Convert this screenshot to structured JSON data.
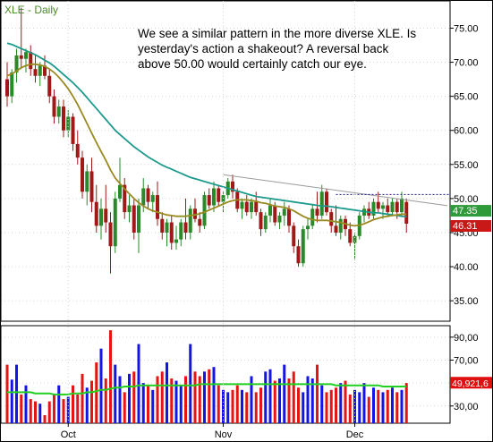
{
  "symbol_label": "XLE - Daily",
  "annotation": "We see a similar pattern in the more diverse XLE.  Is yesterday's action a shakeout?  A reversal back above 50.00 would certainly catch our eye.",
  "colors": {
    "up": "#2a8a2a",
    "down": "#a01818",
    "sma_long": "#1e9a8c",
    "sma_short": "#9a8a20",
    "vol_up": "#1414e6",
    "vol_down": "#e61414",
    "vol_ma": "#22d022",
    "trendline": "#9a9a9a",
    "resistance": "#1a1a8a",
    "label_green": "#4a8a2a",
    "price_tag_green": "#2e9a3a",
    "price_tag_red": "#c81818",
    "vol_tag": "#e01010"
  },
  "chart_data": [
    {
      "type": "candlestick",
      "title": "XLE - Daily",
      "xlabel": "",
      "ylabel": "",
      "ylim": [
        32,
        79
      ],
      "yticks": [
        35,
        40,
        45,
        50,
        55,
        60,
        65,
        70,
        75
      ],
      "ytick_labels": [
        "35.00",
        "40.00",
        "45.00",
        "50.00",
        "55.00",
        "60.00",
        "65.00",
        "70.00",
        "75.00"
      ],
      "month_labels": [
        {
          "label": "Oct",
          "bar": 13
        },
        {
          "label": "Nov",
          "bar": 46
        },
        {
          "label": "Dec",
          "bar": 74
        }
      ],
      "candles": [
        [
          67.5,
          70.0,
          63.5,
          65.0
        ],
        [
          65.0,
          69.0,
          64.0,
          68.5
        ],
        [
          68.5,
          72.0,
          67.0,
          71.0
        ],
        [
          71.0,
          78.0,
          69.0,
          70.5
        ],
        [
          70.5,
          72.0,
          68.5,
          71.5
        ],
        [
          71.5,
          72.5,
          68.0,
          69.0
        ],
        [
          69.0,
          71.0,
          67.0,
          68.0
        ],
        [
          68.0,
          70.0,
          66.5,
          69.5
        ],
        [
          69.5,
          71.0,
          67.5,
          68.0
        ],
        [
          68.0,
          69.0,
          64.0,
          65.0
        ],
        [
          65.0,
          66.0,
          61.0,
          62.0
        ],
        [
          62.0,
          64.5,
          61.0,
          63.5
        ],
        [
          63.5,
          64.5,
          59.0,
          60.0
        ],
        [
          60.0,
          63.0,
          59.0,
          62.0
        ],
        [
          62.0,
          62.5,
          57.0,
          58.0
        ],
        [
          58.0,
          60.0,
          55.0,
          56.0
        ],
        [
          56.0,
          57.0,
          50.0,
          51.0
        ],
        [
          51.0,
          55.0,
          49.0,
          54.0
        ],
        [
          54.0,
          56.0,
          48.0,
          49.5
        ],
        [
          49.5,
          52.0,
          45.0,
          46.0
        ],
        [
          46.0,
          50.0,
          44.0,
          48.5
        ],
        [
          48.5,
          52.0,
          45.0,
          46.5
        ],
        [
          46.5,
          48.0,
          39.0,
          43.0
        ],
        [
          43.0,
          51.0,
          42.0,
          50.0
        ],
        [
          50.0,
          56.0,
          49.5,
          52.0
        ],
        [
          52.0,
          53.0,
          47.0,
          48.0
        ],
        [
          48.0,
          50.5,
          46.5,
          49.0
        ],
        [
          49.0,
          50.0,
          44.0,
          45.0
        ],
        [
          45.0,
          50.0,
          42.0,
          49.0
        ],
        [
          49.0,
          53.0,
          48.0,
          51.5
        ],
        [
          51.5,
          52.0,
          48.5,
          49.5
        ],
        [
          49.5,
          51.0,
          48.0,
          50.5
        ],
        [
          50.5,
          52.5,
          46.0,
          47.0
        ],
        [
          47.0,
          48.0,
          44.0,
          45.0
        ],
        [
          45.0,
          47.0,
          43.0,
          46.5
        ],
        [
          46.5,
          47.5,
          42.5,
          43.5
        ],
        [
          43.5,
          46.0,
          42.5,
          44.0
        ],
        [
          44.0,
          47.0,
          43.0,
          46.5
        ],
        [
          46.5,
          50.0,
          44.0,
          45.0
        ],
        [
          45.0,
          49.0,
          44.0,
          48.5
        ],
        [
          48.5,
          50.0,
          46.5,
          47.0
        ],
        [
          47.0,
          48.0,
          45.0,
          46.0
        ],
        [
          46.0,
          51.0,
          45.5,
          50.5
        ],
        [
          50.5,
          51.5,
          48.5,
          49.0
        ],
        [
          49.0,
          52.5,
          48.0,
          51.5
        ],
        [
          51.5,
          52.0,
          49.0,
          49.5
        ],
        [
          49.5,
          51.0,
          48.0,
          50.5
        ],
        [
          50.5,
          53.0,
          50.0,
          52.5
        ],
        [
          52.5,
          53.5,
          50.0,
          51.0
        ],
        [
          51.0,
          51.5,
          48.0,
          48.5
        ],
        [
          48.5,
          50.0,
          47.0,
          49.5
        ],
        [
          49.5,
          50.5,
          47.5,
          48.0
        ],
        [
          48.0,
          50.0,
          47.0,
          49.5
        ],
        [
          49.5,
          51.0,
          47.5,
          48.0
        ],
        [
          48.0,
          48.5,
          44.5,
          45.5
        ],
        [
          45.5,
          48.0,
          45.0,
          47.5
        ],
        [
          47.5,
          50.0,
          46.5,
          49.0
        ],
        [
          49.0,
          49.5,
          46.0,
          46.5
        ],
        [
          46.5,
          48.0,
          45.5,
          47.5
        ],
        [
          47.5,
          49.5,
          46.0,
          48.5
        ],
        [
          48.5,
          49.0,
          45.0,
          46.0
        ],
        [
          46.0,
          46.5,
          42.0,
          43.0
        ],
        [
          43.0,
          44.0,
          40.0,
          40.5
        ],
        [
          40.5,
          46.0,
          40.0,
          45.5
        ],
        [
          45.5,
          47.0,
          44.0,
          46.0
        ],
        [
          46.0,
          49.0,
          45.5,
          48.5
        ],
        [
          48.5,
          51.0,
          46.5,
          47.5
        ],
        [
          47.5,
          52.0,
          47.0,
          51.0
        ],
        [
          51.0,
          51.5,
          47.5,
          48.0
        ],
        [
          48.0,
          48.5,
          45.0,
          46.0
        ],
        [
          46.0,
          49.0,
          44.5,
          45.0
        ],
        [
          45.0,
          47.5,
          44.0,
          47.0
        ],
        [
          47.0,
          47.5,
          44.5,
          45.5
        ],
        [
          45.5,
          46.5,
          43.0,
          43.5
        ],
        [
          43.5,
          45.0,
          41.0,
          44.5
        ],
        [
          44.5,
          48.0,
          44.0,
          47.5
        ],
        [
          47.5,
          49.0,
          46.5,
          48.5
        ],
        [
          48.5,
          49.5,
          47.0,
          47.5
        ],
        [
          47.5,
          50.0,
          47.0,
          49.5
        ],
        [
          49.5,
          51.0,
          48.0,
          48.5
        ],
        [
          48.5,
          49.5,
          47.0,
          49.0
        ],
        [
          49.0,
          50.0,
          47.5,
          48.0
        ],
        [
          48.0,
          50.0,
          47.5,
          49.5
        ],
        [
          49.5,
          50.0,
          47.0,
          48.0
        ],
        [
          48.0,
          51.0,
          47.5,
          50.0
        ],
        [
          49.5,
          50.0,
          45.0,
          46.31
        ]
      ],
      "sma_long": [
        72.8,
        72.6,
        72.3,
        72.0,
        71.7,
        71.4,
        71.1,
        70.7,
        70.3,
        69.9,
        69.4,
        68.8,
        68.2,
        67.6,
        67.0,
        66.3,
        65.6,
        64.8,
        64.0,
        63.2,
        62.4,
        61.6,
        60.8,
        60.0,
        59.4,
        58.8,
        58.2,
        57.6,
        57.1,
        56.6,
        56.1,
        55.7,
        55.3,
        54.9,
        54.6,
        54.3,
        54.0,
        53.7,
        53.4,
        53.1,
        52.9,
        52.7,
        52.5,
        52.3,
        52.1,
        51.9,
        51.7,
        51.5,
        51.3,
        51.1,
        50.9,
        50.7,
        50.5,
        50.3,
        50.2,
        50.1,
        50.0,
        49.9,
        49.8,
        49.7,
        49.6,
        49.5,
        49.4,
        49.3,
        49.2,
        49.1,
        49.0,
        48.9,
        48.9,
        48.8,
        48.7,
        48.6,
        48.5,
        48.4,
        48.3,
        48.2,
        48.1,
        48.0,
        47.9,
        47.9,
        47.8,
        47.7,
        47.6,
        47.5,
        47.4,
        47.35
      ],
      "sma_short": [
        68.0,
        68.3,
        68.7,
        69.2,
        69.5,
        69.7,
        69.7,
        69.6,
        69.4,
        69.0,
        68.5,
        67.8,
        67.0,
        66.1,
        65.0,
        63.8,
        62.4,
        61.0,
        59.6,
        58.2,
        56.9,
        55.6,
        54.2,
        53.0,
        52.2,
        51.4,
        50.7,
        50.0,
        49.4,
        48.9,
        48.5,
        48.2,
        48.0,
        47.8,
        47.6,
        47.5,
        47.4,
        47.4,
        47.4,
        47.5,
        47.6,
        47.8,
        48.0,
        48.3,
        48.6,
        48.9,
        49.2,
        49.5,
        49.7,
        49.8,
        49.8,
        49.8,
        49.7,
        49.6,
        49.4,
        49.3,
        49.1,
        48.9,
        48.8,
        48.7,
        48.5,
        48.2,
        47.8,
        47.4,
        47.1,
        46.9,
        46.8,
        46.8,
        46.8,
        46.7,
        46.6,
        46.5,
        46.3,
        46.1,
        46.0,
        46.1,
        46.3,
        46.6,
        46.9,
        47.1,
        47.3,
        47.4,
        47.5,
        47.6,
        47.7,
        47.7
      ],
      "trendline": {
        "from": {
          "bar": 46,
          "value": 53.5
        },
        "to": {
          "bar": 88,
          "value": 49.5
        }
      },
      "resistance": {
        "value": 50.6,
        "from_bar": 70,
        "to_bar": 88
      },
      "price_tags": [
        {
          "value": 47.35,
          "label": "47.35",
          "role": "sma"
        },
        {
          "value": 46.31,
          "label": "46.31",
          "role": "last"
        }
      ]
    },
    {
      "type": "bar",
      "title": "",
      "xlabel": "",
      "ylabel": "",
      "ylim": [
        15,
        100
      ],
      "yticks": [
        30,
        50,
        70,
        90
      ],
      "ytick_labels": [
        "30,00",
        "50,00",
        "70,00",
        "90,00"
      ],
      "volumes": [
        66,
        53,
        66,
        40,
        48,
        36,
        34,
        32,
        22,
        34,
        40,
        48,
        36,
        38,
        48,
        40,
        58,
        46,
        52,
        68,
        80,
        54,
        96,
        66,
        56,
        42,
        58,
        60,
        84,
        50,
        48,
        44,
        56,
        60,
        68,
        54,
        52,
        48,
        56,
        84,
        60,
        56,
        60,
        62,
        64,
        48,
        44,
        42,
        44,
        48,
        44,
        42,
        56,
        42,
        46,
        60,
        62,
        52,
        54,
        66,
        54,
        60,
        46,
        42,
        56,
        54,
        66,
        48,
        42,
        44,
        46,
        50,
        52,
        40,
        44,
        42,
        50,
        38,
        46,
        44,
        42,
        44,
        46,
        42,
        44,
        50
      ],
      "vol_ma": [
        42,
        42,
        42,
        42,
        42,
        42,
        41,
        41,
        41,
        41,
        40,
        40,
        40,
        40,
        41,
        41,
        41,
        42,
        42,
        43,
        44,
        44,
        45,
        46,
        46,
        47,
        47,
        47,
        48,
        48,
        48,
        48,
        48,
        48,
        48,
        48,
        48,
        48,
        48,
        48,
        48,
        49,
        49,
        49,
        49,
        49,
        49,
        49,
        49,
        49,
        49,
        49,
        49,
        49,
        49,
        49,
        49,
        49,
        49,
        49,
        49,
        49,
        49,
        49,
        49,
        49,
        49,
        49,
        49,
        49,
        48,
        48,
        48,
        48,
        48,
        48,
        48,
        48,
        48,
        48,
        47,
        47,
        47,
        47,
        47,
        47
      ],
      "last_tag": {
        "value": 49.9,
        "label": "49,921,6"
      }
    }
  ]
}
